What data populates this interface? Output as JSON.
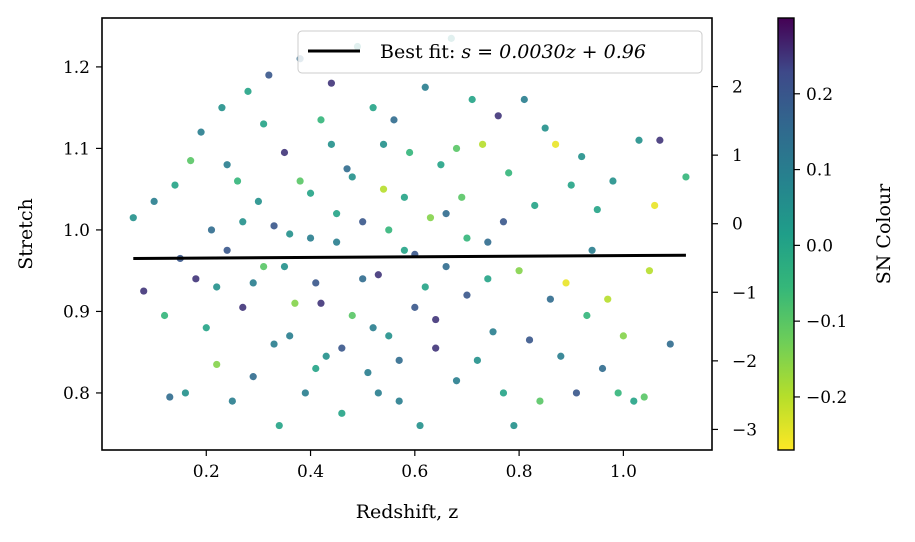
{
  "chart_data": {
    "type": "scatter",
    "title": "",
    "xlabel": "Redshift, z",
    "ylabel": "Stretch",
    "xlim": [
      0.0,
      1.17
    ],
    "ylim": [
      0.73,
      1.26
    ],
    "x_ticks": [
      0.2,
      0.4,
      0.6,
      0.8,
      1.0
    ],
    "x_tick_labels": [
      "0.2",
      "0.4",
      "0.6",
      "0.8",
      "1.0"
    ],
    "y_ticks": [
      0.8,
      0.9,
      1.0,
      1.1,
      1.2
    ],
    "y_tick_labels": [
      "0.8",
      "0.9",
      "1.0",
      "1.1",
      "1.2"
    ],
    "secondary_y": {
      "lim": [
        -3.3,
        3.0
      ],
      "ticks": [
        -3,
        -2,
        -1,
        0,
        1,
        2
      ],
      "tick_labels": [
        "−3",
        "−2",
        "−1",
        "0",
        "1",
        "2"
      ]
    },
    "colorbar": {
      "label": "SN Colour",
      "lim": [
        -0.27,
        0.3
      ],
      "ticks": [
        -0.2,
        -0.1,
        0.0,
        0.1,
        0.2
      ],
      "tick_labels": [
        "−0.2",
        "−0.1",
        "0.0",
        "0.1",
        "0.2"
      ],
      "colormap": "viridis"
    },
    "fit_line": {
      "label": "Best fit: s = 0.0030z + 0.96",
      "label_prefix": "Best fit: ",
      "label_equation": "s = 0.0030z + 0.96",
      "x": [
        0.06,
        1.12
      ],
      "y": [
        0.965,
        0.969
      ],
      "color": "#000000"
    },
    "legend_position": "top-right",
    "grid": false,
    "series": [
      {
        "points": [
          {
            "x": 0.06,
            "y": 1.015,
            "c": 0.05
          },
          {
            "x": 0.08,
            "y": 0.925,
            "c": 0.25
          },
          {
            "x": 0.1,
            "y": 1.035,
            "c": 0.1
          },
          {
            "x": 0.12,
            "y": 0.895,
            "c": -0.05
          },
          {
            "x": 0.13,
            "y": 0.795,
            "c": 0.15
          },
          {
            "x": 0.14,
            "y": 1.055,
            "c": 0.0
          },
          {
            "x": 0.15,
            "y": 0.965,
            "c": 0.2
          },
          {
            "x": 0.16,
            "y": 0.8,
            "c": 0.05
          },
          {
            "x": 0.17,
            "y": 1.085,
            "c": -0.1
          },
          {
            "x": 0.18,
            "y": 0.94,
            "c": 0.25
          },
          {
            "x": 0.19,
            "y": 1.12,
            "c": 0.1
          },
          {
            "x": 0.2,
            "y": 0.88,
            "c": 0.0
          },
          {
            "x": 0.21,
            "y": 1.0,
            "c": 0.15
          },
          {
            "x": 0.22,
            "y": 0.835,
            "c": -0.15
          },
          {
            "x": 0.23,
            "y": 1.15,
            "c": 0.05
          },
          {
            "x": 0.24,
            "y": 0.975,
            "c": 0.2
          },
          {
            "x": 0.25,
            "y": 0.79,
            "c": 0.1
          },
          {
            "x": 0.26,
            "y": 1.06,
            "c": -0.05
          },
          {
            "x": 0.27,
            "y": 0.905,
            "c": 0.25
          },
          {
            "x": 0.28,
            "y": 1.17,
            "c": 0.0
          },
          {
            "x": 0.29,
            "y": 0.82,
            "c": 0.15
          },
          {
            "x": 0.3,
            "y": 1.035,
            "c": 0.05
          },
          {
            "x": 0.31,
            "y": 0.955,
            "c": -0.1
          },
          {
            "x": 0.32,
            "y": 1.19,
            "c": 0.2
          },
          {
            "x": 0.33,
            "y": 0.86,
            "c": 0.1
          },
          {
            "x": 0.34,
            "y": 0.76,
            "c": 0.0
          },
          {
            "x": 0.35,
            "y": 1.095,
            "c": 0.25
          },
          {
            "x": 0.36,
            "y": 0.995,
            "c": 0.05
          },
          {
            "x": 0.37,
            "y": 0.91,
            "c": -0.15
          },
          {
            "x": 0.38,
            "y": 1.21,
            "c": 0.15
          },
          {
            "x": 0.39,
            "y": 0.8,
            "c": 0.1
          },
          {
            "x": 0.4,
            "y": 1.045,
            "c": 0.0
          },
          {
            "x": 0.41,
            "y": 0.935,
            "c": 0.2
          },
          {
            "x": 0.42,
            "y": 1.135,
            "c": -0.05
          },
          {
            "x": 0.43,
            "y": 0.845,
            "c": 0.05
          },
          {
            "x": 0.44,
            "y": 1.18,
            "c": 0.25
          },
          {
            "x": 0.45,
            "y": 0.985,
            "c": 0.1
          },
          {
            "x": 0.46,
            "y": 0.775,
            "c": 0.0
          },
          {
            "x": 0.47,
            "y": 1.075,
            "c": 0.15
          },
          {
            "x": 0.48,
            "y": 0.895,
            "c": -0.1
          },
          {
            "x": 0.49,
            "y": 1.225,
            "c": 0.05
          },
          {
            "x": 0.5,
            "y": 1.01,
            "c": 0.2
          },
          {
            "x": 0.51,
            "y": 0.825,
            "c": 0.1
          },
          {
            "x": 0.52,
            "y": 1.15,
            "c": 0.0
          },
          {
            "x": 0.53,
            "y": 0.945,
            "c": 0.25
          },
          {
            "x": 0.54,
            "y": 1.05,
            "c": -0.2
          },
          {
            "x": 0.55,
            "y": 0.87,
            "c": 0.05
          },
          {
            "x": 0.56,
            "y": 1.135,
            "c": 0.15
          },
          {
            "x": 0.57,
            "y": 0.79,
            "c": 0.1
          },
          {
            "x": 0.58,
            "y": 0.975,
            "c": 0.0
          },
          {
            "x": 0.59,
            "y": 1.095,
            "c": -0.05
          },
          {
            "x": 0.6,
            "y": 0.905,
            "c": 0.2
          },
          {
            "x": 0.61,
            "y": 0.76,
            "c": 0.05
          },
          {
            "x": 0.62,
            "y": 1.175,
            "c": 0.1
          },
          {
            "x": 0.63,
            "y": 1.015,
            "c": -0.15
          },
          {
            "x": 0.64,
            "y": 0.855,
            "c": 0.25
          },
          {
            "x": 0.65,
            "y": 1.08,
            "c": 0.0
          },
          {
            "x": 0.66,
            "y": 0.955,
            "c": 0.15
          },
          {
            "x": 0.67,
            "y": 1.235,
            "c": 0.05
          },
          {
            "x": 0.68,
            "y": 0.815,
            "c": 0.1
          },
          {
            "x": 0.69,
            "y": 1.04,
            "c": -0.1
          },
          {
            "x": 0.7,
            "y": 0.92,
            "c": 0.2
          },
          {
            "x": 0.71,
            "y": 1.16,
            "c": 0.0
          },
          {
            "x": 0.72,
            "y": 0.84,
            "c": 0.05
          },
          {
            "x": 0.73,
            "y": 1.105,
            "c": -0.2
          },
          {
            "x": 0.74,
            "y": 0.985,
            "c": 0.15
          },
          {
            "x": 0.75,
            "y": 0.875,
            "c": 0.1
          },
          {
            "x": 0.76,
            "y": 1.14,
            "c": 0.25
          },
          {
            "x": 0.77,
            "y": 0.8,
            "c": 0.0
          },
          {
            "x": 0.78,
            "y": 1.07,
            "c": -0.05
          },
          {
            "x": 0.79,
            "y": 0.76,
            "c": 0.05
          },
          {
            "x": 0.8,
            "y": 0.95,
            "c": -0.15
          },
          {
            "x": 0.81,
            "y": 1.16,
            "c": 0.1
          },
          {
            "x": 0.82,
            "y": 0.865,
            "c": 0.2
          },
          {
            "x": 0.83,
            "y": 1.03,
            "c": 0.0
          },
          {
            "x": 0.84,
            "y": 0.79,
            "c": -0.1
          },
          {
            "x": 0.85,
            "y": 1.125,
            "c": 0.05
          },
          {
            "x": 0.86,
            "y": 0.915,
            "c": 0.15
          },
          {
            "x": 0.87,
            "y": 1.105,
            "c": -0.25
          },
          {
            "x": 0.88,
            "y": 0.845,
            "c": 0.1
          },
          {
            "x": 0.89,
            "y": 0.935,
            "c": -0.25
          },
          {
            "x": 0.9,
            "y": 1.055,
            "c": 0.0
          },
          {
            "x": 0.91,
            "y": 0.8,
            "c": 0.2
          },
          {
            "x": 0.92,
            "y": 1.09,
            "c": 0.05
          },
          {
            "x": 0.93,
            "y": 0.895,
            "c": -0.05
          },
          {
            "x": 0.94,
            "y": 0.975,
            "c": 0.1
          },
          {
            "x": 0.95,
            "y": 1.025,
            "c": 0.0
          },
          {
            "x": 0.96,
            "y": 0.83,
            "c": 0.15
          },
          {
            "x": 0.97,
            "y": 0.915,
            "c": -0.2
          },
          {
            "x": 0.98,
            "y": 1.06,
            "c": 0.05
          },
          {
            "x": 0.99,
            "y": 0.8,
            "c": -0.05
          },
          {
            "x": 1.0,
            "y": 0.87,
            "c": -0.15
          },
          {
            "x": 1.02,
            "y": 0.79,
            "c": 0.0
          },
          {
            "x": 1.03,
            "y": 1.11,
            "c": 0.05
          },
          {
            "x": 1.04,
            "y": 0.795,
            "c": -0.1
          },
          {
            "x": 1.05,
            "y": 0.95,
            "c": -0.2
          },
          {
            "x": 1.06,
            "y": 1.03,
            "c": -0.25
          },
          {
            "x": 1.07,
            "y": 1.11,
            "c": 0.25
          },
          {
            "x": 1.09,
            "y": 0.86,
            "c": 0.15
          },
          {
            "x": 1.12,
            "y": 1.065,
            "c": -0.05
          },
          {
            "x": 0.35,
            "y": 0.955,
            "c": 0.05
          },
          {
            "x": 0.4,
            "y": 0.99,
            "c": 0.1
          },
          {
            "x": 0.45,
            "y": 1.02,
            "c": 0.0
          },
          {
            "x": 0.5,
            "y": 0.94,
            "c": 0.15
          },
          {
            "x": 0.55,
            "y": 1.0,
            "c": -0.05
          },
          {
            "x": 0.6,
            "y": 0.97,
            "c": 0.2
          },
          {
            "x": 0.42,
            "y": 0.91,
            "c": 0.25
          },
          {
            "x": 0.48,
            "y": 1.065,
            "c": 0.05
          },
          {
            "x": 0.52,
            "y": 0.88,
            "c": 0.1
          },
          {
            "x": 0.58,
            "y": 1.04,
            "c": 0.0
          },
          {
            "x": 0.38,
            "y": 1.06,
            "c": -0.1
          },
          {
            "x": 0.33,
            "y": 1.005,
            "c": 0.2
          },
          {
            "x": 0.27,
            "y": 1.01,
            "c": 0.05
          },
          {
            "x": 0.29,
            "y": 0.935,
            "c": 0.1
          },
          {
            "x": 0.62,
            "y": 0.93,
            "c": 0.0
          },
          {
            "x": 0.66,
            "y": 1.02,
            "c": 0.15
          },
          {
            "x": 0.7,
            "y": 0.99,
            "c": -0.05
          },
          {
            "x": 0.46,
            "y": 0.855,
            "c": 0.2
          },
          {
            "x": 0.54,
            "y": 1.105,
            "c": 0.05
          },
          {
            "x": 0.64,
            "y": 0.89,
            "c": 0.25
          },
          {
            "x": 0.36,
            "y": 0.87,
            "c": 0.1
          },
          {
            "x": 0.31,
            "y": 1.13,
            "c": 0.0
          },
          {
            "x": 0.57,
            "y": 0.84,
            "c": 0.15
          },
          {
            "x": 0.44,
            "y": 1.105,
            "c": 0.05
          },
          {
            "x": 0.68,
            "y": 1.1,
            "c": -0.1
          },
          {
            "x": 0.24,
            "y": 1.08,
            "c": 0.1
          },
          {
            "x": 0.22,
            "y": 0.93,
            "c": 0.05
          },
          {
            "x": 0.74,
            "y": 0.94,
            "c": 0.0
          },
          {
            "x": 0.77,
            "y": 1.01,
            "c": 0.2
          },
          {
            "x": 0.53,
            "y": 0.8,
            "c": 0.1
          },
          {
            "x": 0.41,
            "y": 0.83,
            "c": 0.0
          }
        ]
      }
    ]
  }
}
